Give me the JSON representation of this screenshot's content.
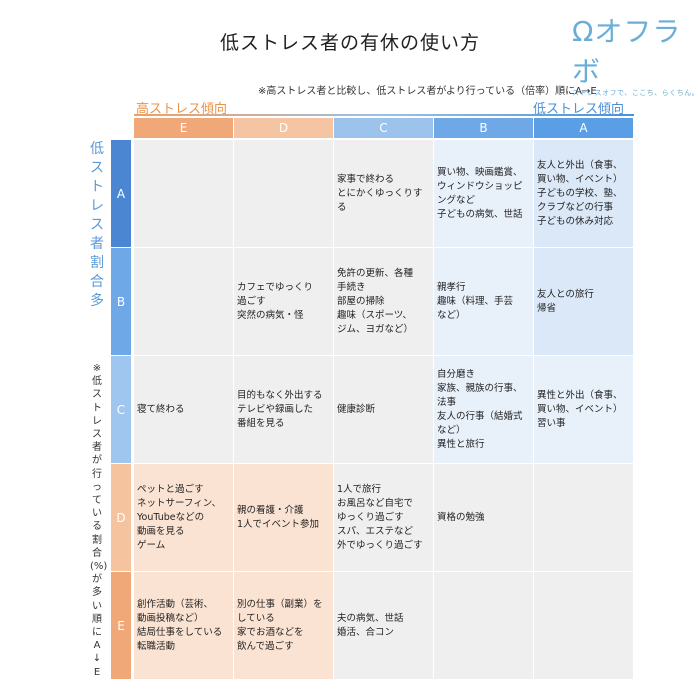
{
  "title": "低ストレス者の有休の使い方",
  "logo": {
    "mark": "Ωオフラボ",
    "subtitle": "ストレスオフで、ここち、らくちん。"
  },
  "note": "※高ストレス者と比較し、低ストレス者がより行っている（倍率）順にA→E",
  "axis": {
    "high_label": "高ストレス傾向",
    "low_label": "低ストレス傾向"
  },
  "row_axis": {
    "main_label": "低ストレス者割合多",
    "sub_label": "※低ストレス者が行っている割合(%)が多い順にA↓E"
  },
  "colors": {
    "col_heads": [
      "#f0a879",
      "#f5c5a3",
      "#9cc3ec",
      "#6ea8e6",
      "#5a9ee6"
    ],
    "row_heads": [
      "#4a86d2",
      "#6ea8e6",
      "#9ec6ee",
      "#f5c39d",
      "#f0a879"
    ],
    "blue_dark": "#dbe8f7",
    "blue_light": "#e8f0fa",
    "gray": "#efefef",
    "peach": "#fbe3d3"
  },
  "chart_data": {
    "type": "table",
    "columns": [
      "E",
      "D",
      "C",
      "B",
      "A"
    ],
    "rows": [
      "A",
      "B",
      "C",
      "D",
      "E"
    ],
    "cells": [
      [
        [],
        [],
        [
          "家事で終わる",
          "とにかくゆっくりす",
          "る"
        ],
        [
          "買い物、映画鑑賞、",
          "ウィンドウショッピ",
          "ングなど",
          "子どもの病気、世話"
        ],
        [
          "友人と外出（食事、",
          "買い物、イベント）",
          "子どもの学校、塾、",
          "クラブなどの行事",
          "子どもの休み対応"
        ]
      ],
      [
        [],
        [
          "カフェでゆっくり",
          "過ごす",
          "突然の病気・怪"
        ],
        [
          "免許の更新、各種",
          "手続き",
          "部屋の掃除",
          "趣味（スポーツ、",
          "ジム、ヨガなど）"
        ],
        [
          "親孝行",
          "趣味（料理、手芸",
          "など）"
        ],
        [
          "友人との旅行",
          "帰省"
        ]
      ],
      [
        [
          "寝て終わる"
        ],
        [
          "目的もなく外出する",
          "テレビや録画した",
          "番組を見る"
        ],
        [
          "健康診断"
        ],
        [
          "自分磨き",
          "家族、親族の行事、",
          "法事",
          "友人の行事（結婚式",
          "など）",
          "異性と旅行"
        ],
        [
          "異性と外出（食事、",
          "買い物、イベント）",
          "習い事"
        ]
      ],
      [
        [
          "ペットと過ごす",
          "ネットサーフィン、",
          "YouTubeなどの",
          "動画を見る",
          "ゲーム"
        ],
        [
          "親の看護・介護",
          "1人でイベント参加"
        ],
        [
          "1人で旅行",
          "お風呂など自宅で",
          "ゆっくり過ごす",
          "スパ、エステなど",
          "外でゆっくり過ごす"
        ],
        [
          "資格の勉強"
        ],
        []
      ],
      [
        [
          "創作活動（芸術、",
          "動画投稿など）",
          "結局仕事をしている",
          "転職活動"
        ],
        [
          "別の仕事（副業）を",
          "している",
          "家でお酒などを",
          "飲んで過ごす"
        ],
        [
          "夫の病気、世話",
          "婚活、合コン"
        ],
        [],
        []
      ]
    ]
  }
}
